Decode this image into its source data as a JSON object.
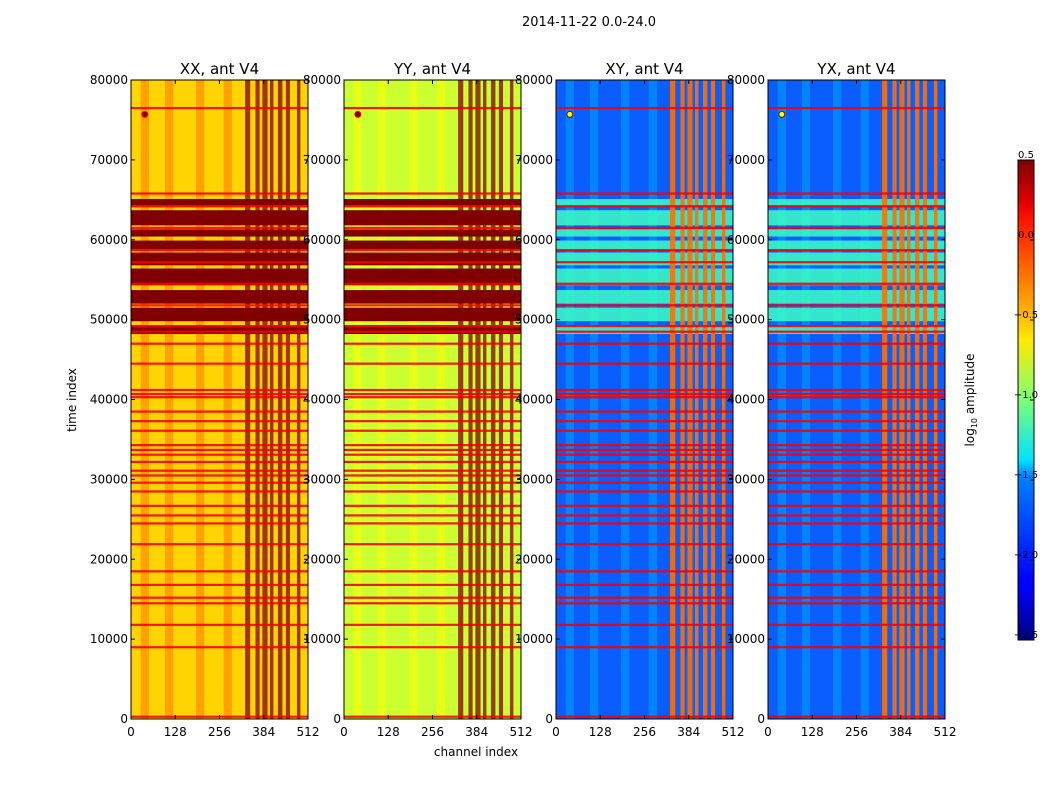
{
  "chart_data": {
    "type": "heatmap",
    "suptitle": "2014-11-22 0.0-24.0",
    "xlabel": "channel index",
    "ylabel": "time index",
    "xlim": [
      0,
      512
    ],
    "ylim": [
      0,
      80000
    ],
    "x_ticks": [
      0,
      128,
      256,
      384,
      512
    ],
    "y_ticks": [
      0,
      10000,
      20000,
      30000,
      40000,
      50000,
      60000,
      70000,
      80000
    ],
    "colorbar": {
      "label": "log10 amplitude",
      "label_main": "log",
      "label_sub": "10",
      "label_rest": " amplitude",
      "range": [
        -2.5,
        0.5
      ],
      "ticks": [
        0.5,
        0.0,
        -0.5,
        -1.0,
        -1.5,
        -2.0,
        -2.5
      ],
      "tick_labels": [
        "0.5",
        "0.0",
        "−0.5",
        "−1.0",
        "−1.5",
        "−2.0",
        "−2.5"
      ],
      "colormap": "jet"
    },
    "panels": [
      {
        "title": "XX, ant V4",
        "base_level": -0.35,
        "rfi_band_level": 0.5,
        "background": "#ffd400"
      },
      {
        "title": "YY, ant V4",
        "base_level": -0.75,
        "rfi_band_level": 0.5,
        "background": "#ccff30"
      },
      {
        "title": "XY, ant V4",
        "base_level": -2.0,
        "rfi_band_level": -0.2,
        "background": "#0a5dff"
      },
      {
        "title": "YX, ant V4",
        "base_level": -2.0,
        "rfi_band_level": -0.2,
        "background": "#0a5dff"
      }
    ],
    "flagged_time_rows": [
      300,
      9000,
      11800,
      14500,
      15200,
      16800,
      18500,
      21900,
      24500,
      25500,
      26700,
      28500,
      29600,
      30500,
      31100,
      32200,
      33100,
      33700,
      34300,
      36100,
      37300,
      38500,
      40300,
      40700,
      41200,
      44500,
      47000,
      48500,
      49200,
      51800,
      54500,
      57200,
      58700,
      61500,
      64200,
      65800,
      76500
    ],
    "saturated_time_ranges": [
      [
        48200,
        49300
      ],
      [
        49800,
        51500
      ],
      [
        52000,
        53700
      ],
      [
        54300,
        56400
      ],
      [
        56800,
        58400
      ],
      [
        58800,
        59900
      ],
      [
        60400,
        61300
      ],
      [
        61800,
        63700
      ],
      [
        64300,
        65100
      ]
    ],
    "strong_rfi_channels": [
      [
        330,
        345
      ],
      [
        360,
        372
      ],
      [
        380,
        395
      ],
      [
        402,
        412
      ],
      [
        425,
        438
      ],
      [
        448,
        460
      ],
      [
        480,
        490
      ]
    ],
    "point_source": {
      "channel": 40,
      "time": 75700
    }
  }
}
